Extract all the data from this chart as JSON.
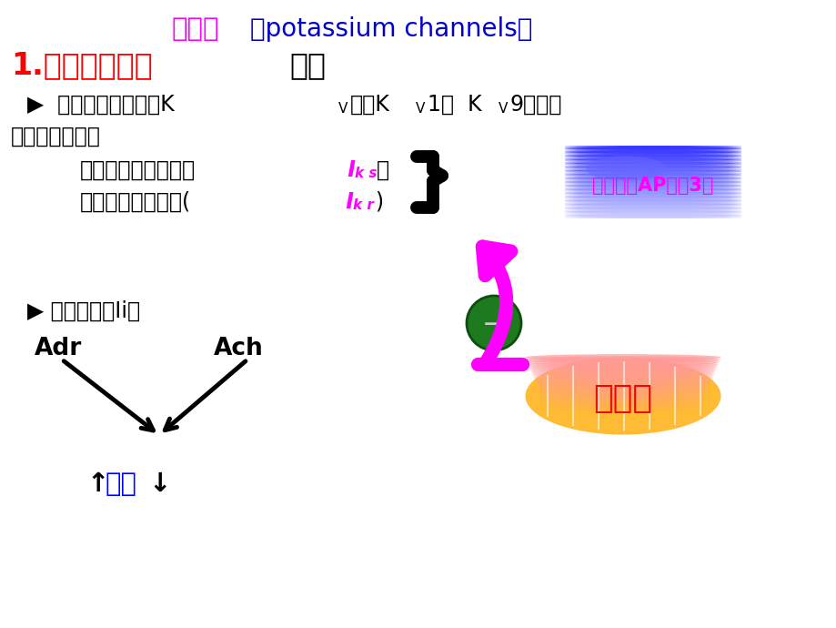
{
  "bg_color": "#ffffff",
  "title_cn": "钾通道",
  "title_en": "（potassium channels）",
  "title_cn_color": "#ff00ff",
  "title_en_color": "#0000cd",
  "s1_red": "1.电压依赖性钾",
  "s1_black": "通道",
  "bullet1a": "▶  延迟整流钾通道（K",
  "bullet1b": "V",
  "bullet1c": "）：K",
  "bullet1d": "V",
  "bullet1e": "1～  K",
  "bullet1f": "V",
  "bullet1g": "9，外向",
  "line2": "电流，膜复极化",
  "slow_pre": "慢激活整流钾通道（",
  "slow_I": "I",
  "slow_sub": "k s",
  "slow_post": "）",
  "fast_pre": "快激活整流钾通道(",
  "fast_I": "I",
  "fast_sub": "k r",
  "fast_post": ")",
  "blue_label": "心肌细胞AP复极3期",
  "orange_label": "胺碘酮",
  "bullet2": "▶ 起搏电流（Ii）",
  "adr": "Adr",
  "ach": "Ach",
  "hr_up": "↑",
  "hr_cn": "心率",
  "hr_down": "↓",
  "color_black": "#000000",
  "color_magenta": "#ff00ff",
  "color_red": "#ff0000",
  "color_blue": "#0000ff",
  "color_dark_blue": "#0000cd",
  "color_green_dark": "#1a6b1a",
  "color_white": "#ffffff"
}
